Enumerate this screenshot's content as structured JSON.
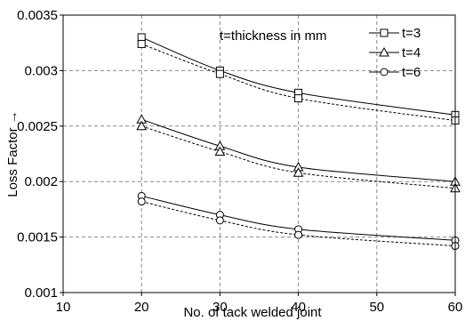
{
  "chart_data": {
    "type": "line",
    "xlabel": "No. of tack welded joint",
    "ylabel": "Loss Factor →",
    "xlim": [
      10,
      60
    ],
    "ylim": [
      0.001,
      0.0035
    ],
    "xticks": [
      10,
      20,
      30,
      40,
      50,
      60
    ],
    "xtick_labels": [
      "10",
      "20",
      "30",
      "40",
      "50",
      "60"
    ],
    "yticks": [
      0.001,
      0.0015,
      0.002,
      0.0025,
      0.003,
      0.0035
    ],
    "ytick_labels": [
      "0.001",
      "0.0015",
      "0.002",
      "0.0025",
      "0.003",
      "0.0035"
    ],
    "grid": true,
    "grid_style": "dashed",
    "legend_position": "top-right",
    "annotation": "t=thickness in mm",
    "series": [
      {
        "name": "t=3",
        "marker": "square",
        "line_style": "solid",
        "x": [
          20,
          30,
          40,
          60
        ],
        "y": [
          0.0033,
          0.003,
          0.0028,
          0.0026
        ]
      },
      {
        "marker": "square",
        "line_style": "dashed",
        "x": [
          20,
          30,
          40,
          60
        ],
        "y": [
          0.00324,
          0.00297,
          0.00275,
          0.00255
        ]
      },
      {
        "name": "t=4",
        "marker": "triangle",
        "line_style": "solid",
        "x": [
          20,
          30,
          40,
          60
        ],
        "y": [
          0.00256,
          0.00232,
          0.00213,
          0.002
        ]
      },
      {
        "marker": "triangle",
        "line_style": "dashed",
        "x": [
          20,
          30,
          40,
          60
        ],
        "y": [
          0.0025,
          0.00227,
          0.00208,
          0.00194
        ]
      },
      {
        "name": "t=6",
        "marker": "circle",
        "line_style": "solid",
        "x": [
          20,
          30,
          40,
          60
        ],
        "y": [
          0.00187,
          0.0017,
          0.00157,
          0.00147
        ]
      },
      {
        "marker": "circle",
        "line_style": "dashed",
        "x": [
          20,
          30,
          40,
          60
        ],
        "y": [
          0.00182,
          0.00165,
          0.00152,
          0.00142
        ]
      }
    ]
  }
}
